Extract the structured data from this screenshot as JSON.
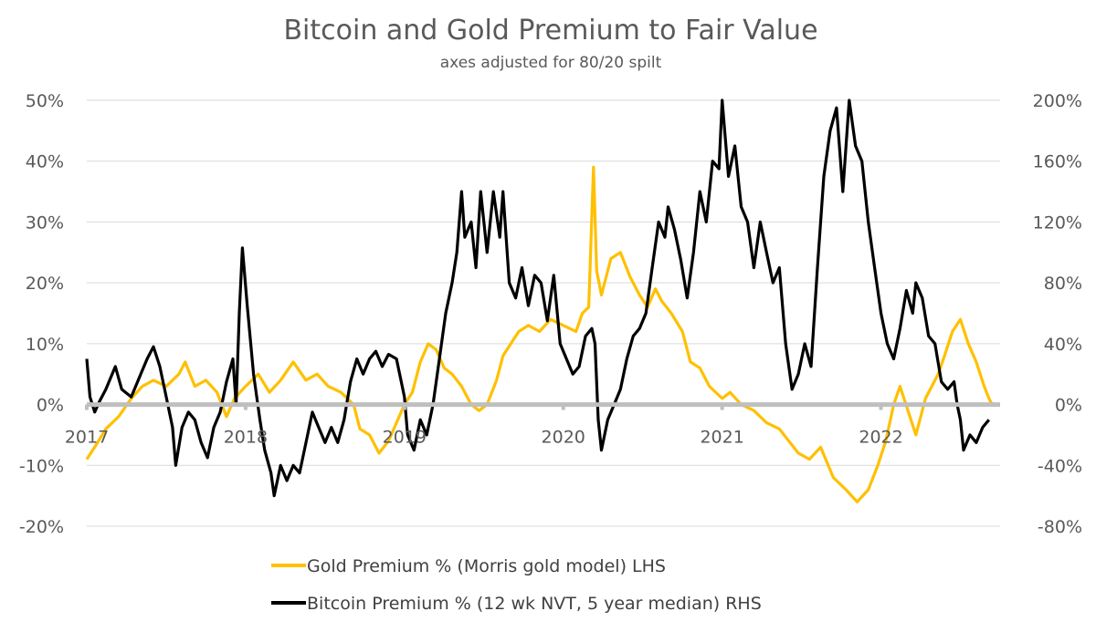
{
  "chart_data": {
    "type": "line",
    "title": "Bitcoin and Gold Premium to Fair Value",
    "subtitle": "axes adjusted for 80/20 spilt",
    "y_left": {
      "ticks": [
        -20,
        -10,
        0,
        10,
        20,
        30,
        40,
        50
      ],
      "tick_labels": [
        "-20%",
        "-10%",
        "0%",
        "10%",
        "20%",
        "30%",
        "40%",
        "50%"
      ],
      "range": [
        -20,
        50
      ]
    },
    "y_right": {
      "ticks": [
        -80,
        -40,
        0,
        40,
        80,
        120,
        160,
        200
      ],
      "tick_labels": [
        "-80%",
        "-40%",
        "0%",
        "40%",
        "80%",
        "120%",
        "160%",
        "200%"
      ],
      "range": [
        -80,
        200
      ]
    },
    "x": {
      "range": [
        2017.0,
        2022.75
      ],
      "ticks": [
        2017,
        2018,
        2019,
        2020,
        2021,
        2022
      ],
      "tick_labels": [
        "2017",
        "2018",
        "2019",
        "2020",
        "2021",
        "2022"
      ]
    },
    "series": [
      {
        "name": "Gold Premium % (Morris gold model) LHS",
        "axis": "left",
        "color": "#FFC000",
        "points": [
          [
            2017.0,
            -9
          ],
          [
            2017.05,
            -7
          ],
          [
            2017.12,
            -4
          ],
          [
            2017.2,
            -2
          ],
          [
            2017.28,
            1
          ],
          [
            2017.35,
            3
          ],
          [
            2017.42,
            4
          ],
          [
            2017.5,
            3
          ],
          [
            2017.58,
            5
          ],
          [
            2017.62,
            7
          ],
          [
            2017.68,
            3
          ],
          [
            2017.75,
            4
          ],
          [
            2017.82,
            2
          ],
          [
            2017.88,
            -2
          ],
          [
            2017.93,
            1
          ],
          [
            2018.0,
            3
          ],
          [
            2018.08,
            5
          ],
          [
            2018.15,
            2
          ],
          [
            2018.22,
            4
          ],
          [
            2018.3,
            7
          ],
          [
            2018.38,
            4
          ],
          [
            2018.45,
            5
          ],
          [
            2018.52,
            3
          ],
          [
            2018.6,
            2
          ],
          [
            2018.68,
            0
          ],
          [
            2018.72,
            -4
          ],
          [
            2018.78,
            -5
          ],
          [
            2018.84,
            -8
          ],
          [
            2018.9,
            -6
          ],
          [
            2018.95,
            -3
          ],
          [
            2019.0,
            0
          ],
          [
            2019.05,
            2
          ],
          [
            2019.1,
            7
          ],
          [
            2019.15,
            10
          ],
          [
            2019.2,
            9
          ],
          [
            2019.25,
            6
          ],
          [
            2019.3,
            5
          ],
          [
            2019.36,
            3
          ],
          [
            2019.42,
            0
          ],
          [
            2019.47,
            -1
          ],
          [
            2019.52,
            0
          ],
          [
            2019.58,
            4
          ],
          [
            2019.62,
            8
          ],
          [
            2019.67,
            10
          ],
          [
            2019.72,
            12
          ],
          [
            2019.78,
            13
          ],
          [
            2019.85,
            12
          ],
          [
            2019.92,
            14
          ],
          [
            2020.0,
            13
          ],
          [
            2020.08,
            12
          ],
          [
            2020.12,
            15
          ],
          [
            2020.16,
            16
          ],
          [
            2020.19,
            39
          ],
          [
            2020.21,
            22
          ],
          [
            2020.24,
            18
          ],
          [
            2020.3,
            24
          ],
          [
            2020.36,
            25
          ],
          [
            2020.42,
            21
          ],
          [
            2020.48,
            18
          ],
          [
            2020.53,
            16
          ],
          [
            2020.58,
            19
          ],
          [
            2020.62,
            17
          ],
          [
            2020.68,
            15
          ],
          [
            2020.75,
            12
          ],
          [
            2020.8,
            7
          ],
          [
            2020.86,
            6
          ],
          [
            2020.92,
            3
          ],
          [
            2021.0,
            1
          ],
          [
            2021.05,
            2
          ],
          [
            2021.12,
            0
          ],
          [
            2021.2,
            -1
          ],
          [
            2021.28,
            -3
          ],
          [
            2021.36,
            -4
          ],
          [
            2021.42,
            -6
          ],
          [
            2021.48,
            -8
          ],
          [
            2021.55,
            -9
          ],
          [
            2021.62,
            -7
          ],
          [
            2021.7,
            -12
          ],
          [
            2021.78,
            -14
          ],
          [
            2021.85,
            -16
          ],
          [
            2021.92,
            -14
          ],
          [
            2021.98,
            -10
          ],
          [
            2022.03,
            -6
          ],
          [
            2022.08,
            0
          ],
          [
            2022.12,
            3
          ],
          [
            2022.17,
            -1
          ],
          [
            2022.22,
            -5
          ],
          [
            2022.28,
            1
          ],
          [
            2022.32,
            3
          ],
          [
            2022.36,
            5
          ],
          [
            2022.4,
            8
          ],
          [
            2022.45,
            12
          ],
          [
            2022.5,
            14
          ],
          [
            2022.55,
            10
          ],
          [
            2022.6,
            7
          ],
          [
            2022.65,
            3
          ],
          [
            2022.68,
            1
          ],
          [
            2022.7,
            0
          ]
        ]
      },
      {
        "name": "Bitcoin Premium % (12 wk NVT, 5 year median) RHS",
        "axis": "right",
        "color": "#000000",
        "points": [
          [
            2017.0,
            30
          ],
          [
            2017.02,
            5
          ],
          [
            2017.05,
            -5
          ],
          [
            2017.08,
            2
          ],
          [
            2017.12,
            10
          ],
          [
            2017.18,
            25
          ],
          [
            2017.22,
            10
          ],
          [
            2017.28,
            5
          ],
          [
            2017.34,
            20
          ],
          [
            2017.38,
            30
          ],
          [
            2017.42,
            38
          ],
          [
            2017.46,
            25
          ],
          [
            2017.5,
            5
          ],
          [
            2017.54,
            -15
          ],
          [
            2017.56,
            -40
          ],
          [
            2017.6,
            -15
          ],
          [
            2017.64,
            -5
          ],
          [
            2017.68,
            -10
          ],
          [
            2017.72,
            -25
          ],
          [
            2017.76,
            -35
          ],
          [
            2017.8,
            -15
          ],
          [
            2017.84,
            -5
          ],
          [
            2017.88,
            15
          ],
          [
            2017.92,
            30
          ],
          [
            2017.94,
            0
          ],
          [
            2017.96,
            60
          ],
          [
            2017.98,
            103
          ],
          [
            2018.01,
            65
          ],
          [
            2018.05,
            20
          ],
          [
            2018.09,
            -10
          ],
          [
            2018.12,
            -30
          ],
          [
            2018.16,
            -45
          ],
          [
            2018.18,
            -60
          ],
          [
            2018.22,
            -40
          ],
          [
            2018.26,
            -50
          ],
          [
            2018.3,
            -40
          ],
          [
            2018.34,
            -45
          ],
          [
            2018.38,
            -25
          ],
          [
            2018.42,
            -5
          ],
          [
            2018.46,
            -15
          ],
          [
            2018.5,
            -25
          ],
          [
            2018.54,
            -15
          ],
          [
            2018.58,
            -25
          ],
          [
            2018.62,
            -10
          ],
          [
            2018.66,
            15
          ],
          [
            2018.7,
            30
          ],
          [
            2018.74,
            20
          ],
          [
            2018.78,
            30
          ],
          [
            2018.82,
            35
          ],
          [
            2018.86,
            25
          ],
          [
            2018.9,
            33
          ],
          [
            2018.95,
            30
          ],
          [
            2019.0,
            5
          ],
          [
            2019.02,
            -20
          ],
          [
            2019.06,
            -30
          ],
          [
            2019.1,
            -10
          ],
          [
            2019.14,
            -20
          ],
          [
            2019.18,
            0
          ],
          [
            2019.22,
            30
          ],
          [
            2019.26,
            60
          ],
          [
            2019.3,
            80
          ],
          [
            2019.33,
            100
          ],
          [
            2019.36,
            140
          ],
          [
            2019.38,
            110
          ],
          [
            2019.42,
            120
          ],
          [
            2019.45,
            90
          ],
          [
            2019.48,
            140
          ],
          [
            2019.52,
            100
          ],
          [
            2019.56,
            140
          ],
          [
            2019.6,
            110
          ],
          [
            2019.62,
            140
          ],
          [
            2019.66,
            80
          ],
          [
            2019.7,
            70
          ],
          [
            2019.74,
            90
          ],
          [
            2019.78,
            65
          ],
          [
            2019.82,
            85
          ],
          [
            2019.86,
            80
          ],
          [
            2019.9,
            55
          ],
          [
            2019.94,
            85
          ],
          [
            2019.98,
            40
          ],
          [
            2020.02,
            30
          ],
          [
            2020.06,
            20
          ],
          [
            2020.1,
            25
          ],
          [
            2020.14,
            45
          ],
          [
            2020.18,
            50
          ],
          [
            2020.2,
            40
          ],
          [
            2020.22,
            -10
          ],
          [
            2020.24,
            -30
          ],
          [
            2020.28,
            -10
          ],
          [
            2020.32,
            0
          ],
          [
            2020.36,
            10
          ],
          [
            2020.4,
            30
          ],
          [
            2020.44,
            45
          ],
          [
            2020.48,
            50
          ],
          [
            2020.52,
            60
          ],
          [
            2020.56,
            90
          ],
          [
            2020.6,
            120
          ],
          [
            2020.64,
            110
          ],
          [
            2020.66,
            130
          ],
          [
            2020.7,
            115
          ],
          [
            2020.74,
            95
          ],
          [
            2020.78,
            70
          ],
          [
            2020.82,
            100
          ],
          [
            2020.86,
            140
          ],
          [
            2020.9,
            120
          ],
          [
            2020.94,
            160
          ],
          [
            2020.98,
            155
          ],
          [
            2021.0,
            200
          ],
          [
            2021.04,
            150
          ],
          [
            2021.08,
            170
          ],
          [
            2021.12,
            130
          ],
          [
            2021.16,
            120
          ],
          [
            2021.2,
            90
          ],
          [
            2021.24,
            120
          ],
          [
            2021.28,
            100
          ],
          [
            2021.32,
            80
          ],
          [
            2021.36,
            90
          ],
          [
            2021.4,
            40
          ],
          [
            2021.44,
            10
          ],
          [
            2021.48,
            20
          ],
          [
            2021.52,
            40
          ],
          [
            2021.56,
            25
          ],
          [
            2021.6,
            90
          ],
          [
            2021.64,
            150
          ],
          [
            2021.68,
            180
          ],
          [
            2021.72,
            195
          ],
          [
            2021.76,
            140
          ],
          [
            2021.8,
            200
          ],
          [
            2021.84,
            170
          ],
          [
            2021.88,
            160
          ],
          [
            2021.92,
            120
          ],
          [
            2021.96,
            90
          ],
          [
            2022.0,
            60
          ],
          [
            2022.04,
            40
          ],
          [
            2022.08,
            30
          ],
          [
            2022.12,
            50
          ],
          [
            2022.16,
            75
          ],
          [
            2022.2,
            60
          ],
          [
            2022.22,
            80
          ],
          [
            2022.26,
            70
          ],
          [
            2022.3,
            45
          ],
          [
            2022.34,
            40
          ],
          [
            2022.38,
            15
          ],
          [
            2022.42,
            10
          ],
          [
            2022.46,
            15
          ],
          [
            2022.48,
            0
          ],
          [
            2022.5,
            -10
          ],
          [
            2022.52,
            -30
          ],
          [
            2022.56,
            -20
          ],
          [
            2022.6,
            -25
          ],
          [
            2022.64,
            -15
          ],
          [
            2022.68,
            -10
          ]
        ]
      }
    ],
    "legend": {
      "position": "bottom-center",
      "entries": [
        "Gold Premium % (Morris gold model) LHS",
        "Bitcoin Premium % (12 wk NVT, 5 year median) RHS"
      ]
    },
    "grid": true
  }
}
